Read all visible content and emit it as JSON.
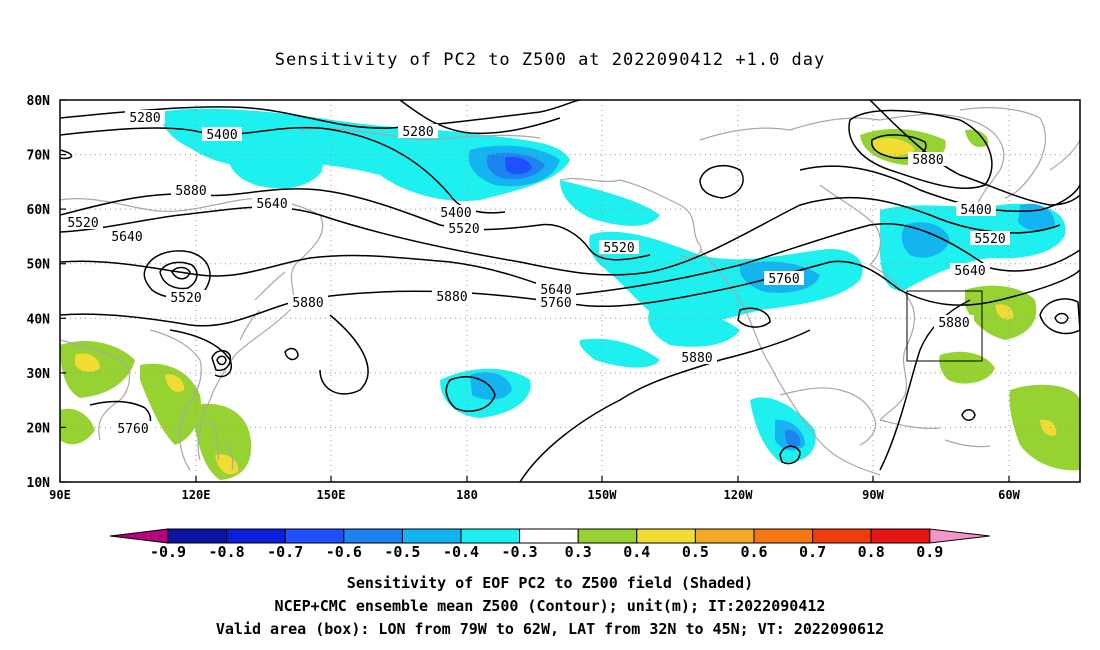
{
  "title": "Sensitivity of PC2 to Z500 at 2022090412 +1.0 day",
  "map": {
    "lat_ticks": [
      "80N",
      "70N",
      "60N",
      "50N",
      "40N",
      "30N",
      "20N",
      "10N"
    ],
    "lon_ticks": [
      "90E",
      "120E",
      "150E",
      "180",
      "150W",
      "120W",
      "90W",
      "60W"
    ]
  },
  "contours": {
    "labels": [
      "5280",
      "5400",
      "5280",
      "5640",
      "5400",
      "5520",
      "5520",
      "5640",
      "5520",
      "5880",
      "5880",
      "5640",
      "5760",
      "5520",
      "5880",
      "5880",
      "5760",
      "5880",
      "5400",
      "5520",
      "5640",
      "5760",
      "5880",
      "5880"
    ]
  },
  "colorbar": {
    "labels": [
      "-0.9",
      "-0.8",
      "-0.7",
      "-0.6",
      "-0.5",
      "-0.4",
      "-0.3",
      "0.3",
      "0.4",
      "0.5",
      "0.6",
      "0.7",
      "0.8",
      "0.9"
    ],
    "colors": [
      "#b5007f",
      "#0a14a0",
      "#0a1edc",
      "#1e50ff",
      "#1e82f0",
      "#14b4f0",
      "#1ef0f0",
      "#ffffff",
      "#96d232",
      "#f0dc32",
      "#f0aa28",
      "#f57814",
      "#f03c0a",
      "#e61414",
      "#f096c8"
    ]
  },
  "footer": {
    "line1": "Sensitivity of EOF PC2 to Z500 field (Shaded)",
    "line2": "NCEP+CMC ensemble mean Z500 (Contour); unit(m); IT:2022090412",
    "line3": "Valid area (box): LON from 79W to 62W, LAT from 32N to 45N; VT: 2022090612"
  }
}
